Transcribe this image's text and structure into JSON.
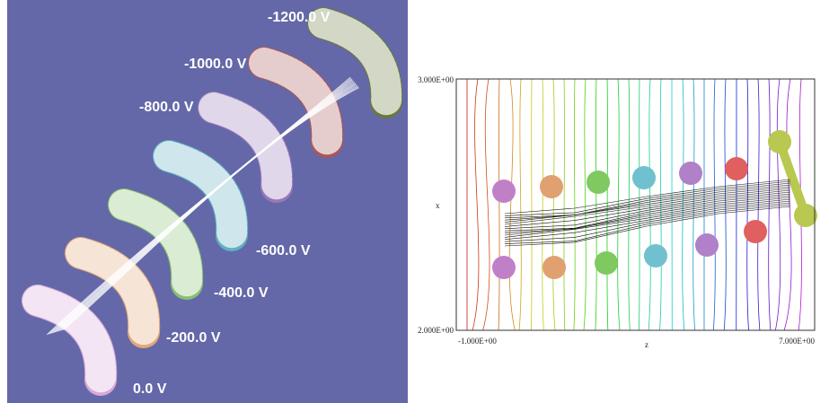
{
  "left_panel": {
    "electrode_labels": [
      "-1200.0 V",
      "-1000.0 V",
      "-800.0 V",
      "-600.0 V",
      "-400.0 V",
      "-200.0 V",
      "0.0 V"
    ]
  },
  "right_panel": {
    "y_top": "3.000E+00",
    "y_bottom": "2.000E+00",
    "x_left": "-1.000E+00",
    "x_right": "7.000E+00",
    "x_axis_label": "z",
    "y_axis_label": "x"
  }
}
